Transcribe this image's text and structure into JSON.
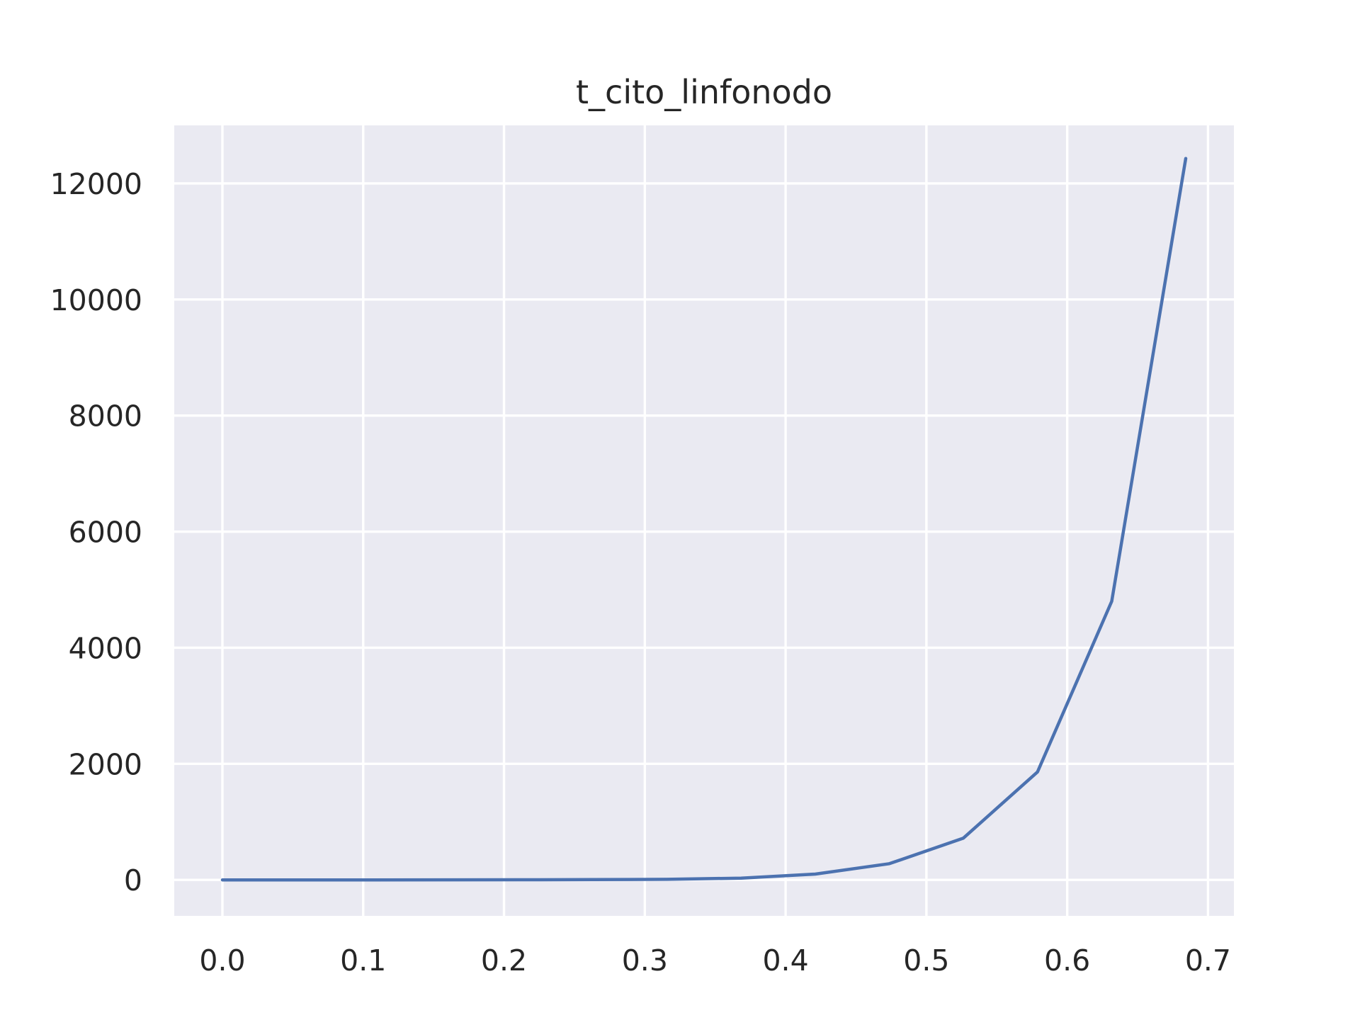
{
  "chart_data": {
    "type": "line",
    "title": "t_cito_linfonodo",
    "xlabel": "",
    "ylabel": "",
    "xlim": [
      -0.0342,
      0.7184
    ],
    "ylim": [
      -620,
      13000
    ],
    "xticks": [
      0.0,
      0.1,
      0.2,
      0.3,
      0.4,
      0.5,
      0.6,
      0.7
    ],
    "xtick_labels": [
      "0.0",
      "0.1",
      "0.2",
      "0.3",
      "0.4",
      "0.5",
      "0.6",
      "0.7"
    ],
    "yticks": [
      0,
      2000,
      4000,
      6000,
      8000,
      10000,
      12000
    ],
    "ytick_labels": [
      "0",
      "2000",
      "4000",
      "6000",
      "8000",
      "10000",
      "12000"
    ],
    "grid": true,
    "legend": "none",
    "series": [
      {
        "color": "#4c72b0",
        "x": [
          0.0,
          0.0526,
          0.1053,
          0.1579,
          0.2105,
          0.2632,
          0.3158,
          0.3684,
          0.4211,
          0.4737,
          0.5263,
          0.5789,
          0.6316,
          0.6842
        ],
        "y": [
          0,
          0,
          0,
          1,
          2,
          5,
          10,
          30,
          100,
          280,
          720,
          1860,
          4800,
          12430
        ]
      }
    ]
  },
  "colors": {
    "plot_background": "#eaeaf2",
    "grid": "#ffffff",
    "text": "#262626",
    "line": "#4c72b0"
  }
}
